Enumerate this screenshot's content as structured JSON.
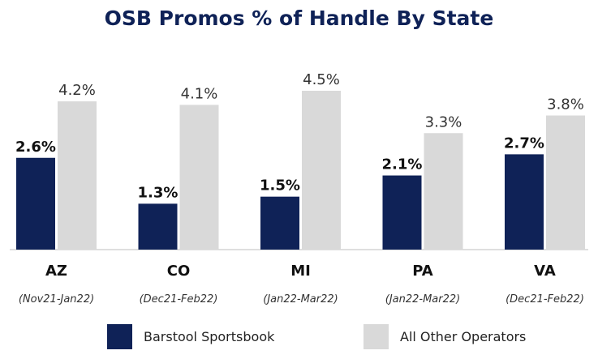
{
  "chart_data": {
    "type": "bar",
    "title": "OSB Promos % of Handle By State",
    "categories": [
      "AZ",
      "CO",
      "MI",
      "PA",
      "VA"
    ],
    "periods": [
      "(Nov21-Jan22)",
      "(Dec21-Feb22)",
      "(Jan22-Mar22)",
      "(Jan22-Mar22)",
      "(Dec21-Feb22)"
    ],
    "series": [
      {
        "name": "Barstool Sportsbook",
        "values": [
          2.6,
          1.3,
          1.5,
          2.1,
          2.7
        ],
        "labels": [
          "2.6%",
          "1.3%",
          "1.5%",
          "2.1%",
          "2.7%"
        ]
      },
      {
        "name": "All Other Operators",
        "values": [
          4.2,
          4.1,
          4.5,
          3.3,
          3.8
        ],
        "labels": [
          "4.2%",
          "4.1%",
          "4.5%",
          "3.3%",
          "3.8%"
        ]
      }
    ],
    "ylim": [
      0,
      4.5
    ],
    "xlabel": "",
    "ylabel": "",
    "grid": false,
    "legend_position": "bottom"
  },
  "colors": {
    "title": "#0f2257",
    "barstool": "#0f2257",
    "others": "#d9d9d9",
    "axis": "#bfbfbf",
    "label_dark": "#111111",
    "label_light": "#333333"
  }
}
